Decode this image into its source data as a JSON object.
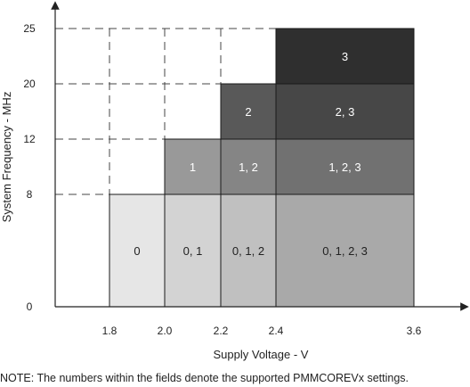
{
  "chart_data": {
    "type": "heatmap",
    "title": "",
    "xlabel": "Supply Voltage - V",
    "ylabel": "System Frequency - MHz",
    "x_ticks": [
      "1.8",
      "2.0",
      "2.2",
      "2.4",
      "3.6"
    ],
    "y_ticks": [
      "0",
      "8",
      "12",
      "20",
      "25"
    ],
    "x_bands": [
      "1.8-2.0",
      "2.0-2.2",
      "2.2-2.4",
      "2.4-3.6"
    ],
    "y_bands": [
      "0-8",
      "8-12",
      "12-20",
      "20-25"
    ],
    "regions": [
      {
        "x_band": 0,
        "y_band": 0,
        "label": "0",
        "color": "#e6e6e6"
      },
      {
        "x_band": 1,
        "y_band": 0,
        "label": "0, 1",
        "color": "#d3d3d3"
      },
      {
        "x_band": 2,
        "y_band": 0,
        "label": "0, 1, 2",
        "color": "#c0c0c0"
      },
      {
        "x_band": 3,
        "y_band": 0,
        "label": "0, 1, 2, 3",
        "color": "#a9a9a9"
      },
      {
        "x_band": 1,
        "y_band": 1,
        "label": "1",
        "color": "#999999"
      },
      {
        "x_band": 2,
        "y_band": 1,
        "label": "1, 2",
        "color": "#858585"
      },
      {
        "x_band": 3,
        "y_band": 1,
        "label": "1, 2, 3",
        "color": "#717171"
      },
      {
        "x_band": 2,
        "y_band": 2,
        "label": "2",
        "color": "#595959"
      },
      {
        "x_band": 3,
        "y_band": 2,
        "label": "2, 3",
        "color": "#474747"
      },
      {
        "x_band": 3,
        "y_band": 3,
        "label": "3",
        "color": "#2f2f2f"
      }
    ]
  },
  "note": "NOTE: The numbers within the fields denote the supported PMMCOREVx settings."
}
